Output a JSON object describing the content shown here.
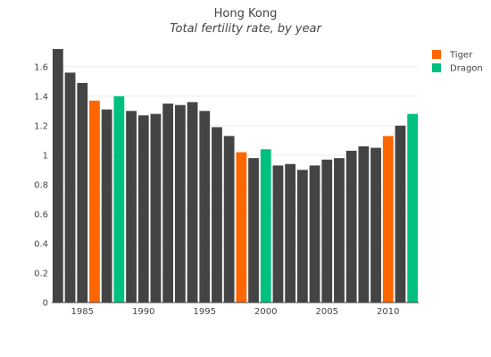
{
  "chart_data": {
    "type": "bar",
    "title": "Hong Kong",
    "subtitle": "Total fertility rate, by year",
    "xlabel": "",
    "ylabel": "",
    "grid": true,
    "legend_position": "top-right",
    "ylim": [
      0,
      1.75
    ],
    "xlim": [
      1982.5,
      2012.5
    ],
    "yticks": [
      0,
      0.2,
      0.4,
      0.6,
      0.8,
      1,
      1.2,
      1.4,
      1.6
    ],
    "ytick_labels": [
      "0",
      "0.2",
      "0.4",
      "0.6",
      "0.8",
      "1",
      "1.2",
      "1.4",
      "1.6"
    ],
    "xticks": [
      1985,
      1990,
      1995,
      2000,
      2005,
      2010
    ],
    "xtick_labels": [
      "1985",
      "1990",
      "1995",
      "2000",
      "2005",
      "2010"
    ],
    "colors": {
      "default": "#444444",
      "Tiger": "#ff6600",
      "Dragon": "#00c07f"
    },
    "legend": [
      {
        "name": "Tiger",
        "color": "#ff6600"
      },
      {
        "name": "Dragon",
        "color": "#00c07f"
      }
    ],
    "bars": [
      {
        "year": 1983,
        "value": 1.72,
        "group": "default"
      },
      {
        "year": 1984,
        "value": 1.56,
        "group": "default"
      },
      {
        "year": 1985,
        "value": 1.49,
        "group": "default"
      },
      {
        "year": 1986,
        "value": 1.37,
        "group": "Tiger"
      },
      {
        "year": 1987,
        "value": 1.31,
        "group": "default"
      },
      {
        "year": 1988,
        "value": 1.4,
        "group": "Dragon"
      },
      {
        "year": 1989,
        "value": 1.3,
        "group": "default"
      },
      {
        "year": 1990,
        "value": 1.27,
        "group": "default"
      },
      {
        "year": 1991,
        "value": 1.28,
        "group": "default"
      },
      {
        "year": 1992,
        "value": 1.35,
        "group": "default"
      },
      {
        "year": 1993,
        "value": 1.34,
        "group": "default"
      },
      {
        "year": 1994,
        "value": 1.36,
        "group": "default"
      },
      {
        "year": 1995,
        "value": 1.3,
        "group": "default"
      },
      {
        "year": 1996,
        "value": 1.19,
        "group": "default"
      },
      {
        "year": 1997,
        "value": 1.13,
        "group": "default"
      },
      {
        "year": 1998,
        "value": 1.02,
        "group": "Tiger"
      },
      {
        "year": 1999,
        "value": 0.98,
        "group": "default"
      },
      {
        "year": 2000,
        "value": 1.04,
        "group": "Dragon"
      },
      {
        "year": 2001,
        "value": 0.93,
        "group": "default"
      },
      {
        "year": 2002,
        "value": 0.94,
        "group": "default"
      },
      {
        "year": 2003,
        "value": 0.9,
        "group": "default"
      },
      {
        "year": 2004,
        "value": 0.93,
        "group": "default"
      },
      {
        "year": 2005,
        "value": 0.97,
        "group": "default"
      },
      {
        "year": 2006,
        "value": 0.98,
        "group": "default"
      },
      {
        "year": 2007,
        "value": 1.03,
        "group": "default"
      },
      {
        "year": 2008,
        "value": 1.06,
        "group": "default"
      },
      {
        "year": 2009,
        "value": 1.05,
        "group": "default"
      },
      {
        "year": 2010,
        "value": 1.13,
        "group": "Tiger"
      },
      {
        "year": 2011,
        "value": 1.2,
        "group": "default"
      },
      {
        "year": 2012,
        "value": 1.28,
        "group": "Dragon"
      }
    ]
  }
}
